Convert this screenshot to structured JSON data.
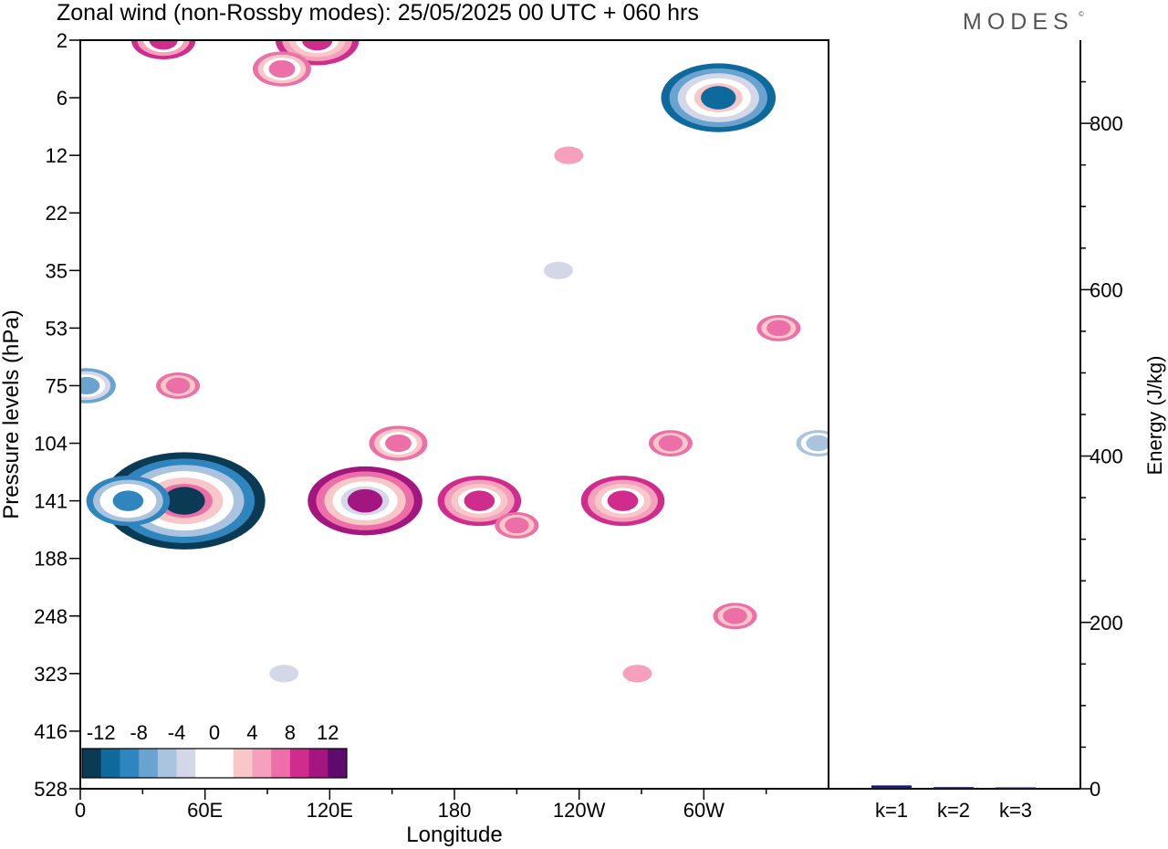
{
  "header": {
    "title": "Zonal wind (non-Rossby modes):  25/05/2025  00 UTC  + 060 hrs",
    "logo": "MODES",
    "logo_mark": "©"
  },
  "colors": {
    "levels": [
      "#0b3a55",
      "#0e6a9c",
      "#2f86bf",
      "#6aa3cf",
      "#aac3de",
      "#d3d7e8",
      "#ffffff",
      "#ffffff",
      "#f8c8c8",
      "#f6a0bd",
      "#ec6fa7",
      "#d02c8e",
      "#a3157f",
      "#5e0a6e"
    ],
    "bar_fill": "#1a1a6e"
  },
  "chart_data": [
    {
      "type": "heatmap",
      "title": "Zonal wind (non-Rossby modes):  25/05/2025  00 UTC  + 060 hrs",
      "xlabel": "Longitude",
      "ylabel": "Pressure levels (hPa)",
      "x_ticks": [
        "0",
        "60E",
        "120E",
        "180",
        "120W",
        "60W"
      ],
      "x_tick_values": [
        0,
        60,
        120,
        180,
        240,
        300
      ],
      "xlim": [
        0,
        360
      ],
      "y_ticks": [
        "2",
        "6",
        "12",
        "22",
        "35",
        "53",
        "75",
        "104",
        "141",
        "188",
        "248",
        "323",
        "416",
        "528"
      ],
      "colorbar": {
        "tick_labels": [
          "-12",
          "-8",
          "-4",
          "0",
          "4",
          "8",
          "12"
        ],
        "levels": [
          -14,
          -12,
          -10,
          -8,
          -6,
          -4,
          -2,
          0,
          2,
          4,
          6,
          8,
          10,
          12,
          14
        ]
      },
      "features": [
        {
          "lon": 50,
          "level": 141,
          "value": -14
        },
        {
          "lon": 23,
          "level": 141,
          "value": -9
        },
        {
          "lon": 3,
          "level": 75,
          "value": -7
        },
        {
          "lon": 307,
          "level": 6,
          "value": -11
        },
        {
          "lon": 355,
          "level": 104,
          "value": -6
        },
        {
          "lon": 137,
          "level": 141,
          "value": 11
        },
        {
          "lon": 153,
          "level": 104,
          "value": 7
        },
        {
          "lon": 192,
          "level": 141,
          "value": 9
        },
        {
          "lon": 210,
          "level": 161,
          "value": 6
        },
        {
          "lon": 261,
          "level": 141,
          "value": 9
        },
        {
          "lon": 284,
          "level": 104,
          "value": 6
        },
        {
          "lon": 47,
          "level": 75,
          "value": 6
        },
        {
          "lon": 40,
          "level": 2,
          "value": 8
        },
        {
          "lon": 114,
          "level": 2,
          "value": 9
        },
        {
          "lon": 97,
          "level": 4,
          "value": 7
        },
        {
          "lon": 315,
          "level": 248,
          "value": 6
        },
        {
          "lon": 336,
          "level": 53,
          "value": 6
        },
        {
          "lon": 268,
          "level": 323,
          "value": 4
        },
        {
          "lon": 235,
          "level": 12,
          "value": 4
        },
        {
          "lon": 230,
          "level": 35,
          "value": -4
        },
        {
          "lon": 98,
          "level": 323,
          "value": -4
        }
      ]
    },
    {
      "type": "bar",
      "categories": [
        "k=1",
        "k=2",
        "k=3"
      ],
      "values": [
        4,
        2,
        1
      ],
      "ylabel": "Energy (J/kg)",
      "ylim": [
        0,
        900
      ],
      "y_ticks": [
        0,
        200,
        400,
        600,
        800
      ]
    }
  ]
}
